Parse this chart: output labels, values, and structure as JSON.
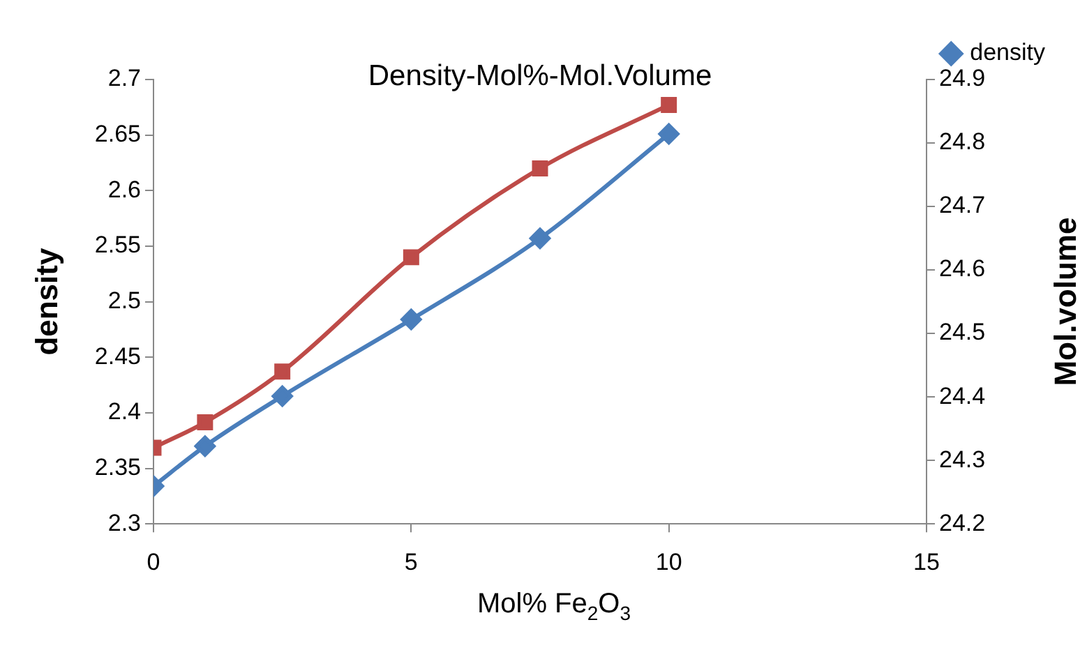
{
  "chart_data": {
    "type": "line",
    "title": "Density-Mol%-Mol.Volume",
    "xlabel": "Mol% Fe$_{2}$O$_{3}$",
    "ylabel": "density",
    "y2label": "Mol.volume",
    "x": [
      0,
      1,
      2.5,
      5,
      7.5,
      10
    ],
    "series": [
      {
        "name": "density",
        "color": "#4a7ebb",
        "marker": "diamond",
        "values": [
          2.334,
          2.37,
          2.415,
          2.484,
          2.557,
          2.651
        ]
      },
      {
        "color": "#be4b48",
        "marker": "square",
        "axis": "y2",
        "values": [
          24.32,
          24.36,
          24.44,
          24.62,
          24.76,
          24.86
        ]
      }
    ],
    "xlim": [
      0,
      15
    ],
    "xticks": [
      0,
      5,
      10,
      15
    ],
    "ylim": [
      2.3,
      2.7
    ],
    "yticks": [
      2.3,
      2.35,
      2.4,
      2.45,
      2.5,
      2.55,
      2.6,
      2.65,
      2.7
    ],
    "y2lim": [
      24.2,
      24.9
    ],
    "y2ticks": [
      24.2,
      24.3,
      24.4,
      24.5,
      24.6,
      24.7,
      24.8,
      24.9
    ],
    "grid": false,
    "legend": "top right"
  }
}
